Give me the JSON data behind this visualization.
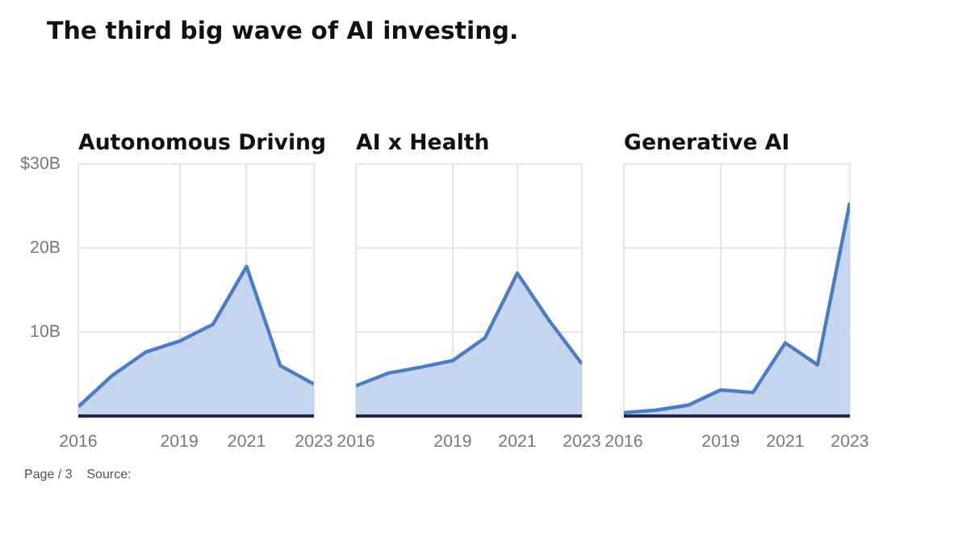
{
  "chart_data": [
    {
      "type": "other",
      "title": "The third big wave of AI investing.",
      "annotations": [
        "Page / 3",
        "Source:"
      ]
    },
    {
      "type": "area",
      "title": "Autonomous Driving",
      "x": [
        2016,
        2017,
        2018,
        2019,
        2020,
        2021,
        2022,
        2023
      ],
      "series": [
        {
          "color": "#4a7cc9",
          "values": [
            1.1,
            4.8,
            7.6,
            8.9,
            10.9,
            17.8,
            6.0,
            3.8
          ]
        }
      ],
      "xlim": [
        2016,
        2023
      ],
      "xticks": [
        2016,
        2019,
        2021,
        2023
      ],
      "ylim": [
        0,
        30
      ],
      "yticks": [
        {
          "value": 10,
          "label": "10B"
        },
        {
          "value": 20,
          "label": "20B"
        },
        {
          "value": 30,
          "label": "$30B"
        }
      ],
      "grid": true
    },
    {
      "type": "area",
      "title": "AI x Health",
      "x": [
        2016,
        2017,
        2018,
        2019,
        2020,
        2021,
        2022,
        2023
      ],
      "series": [
        {
          "color": "#4a7cc9",
          "values": [
            3.6,
            5.1,
            5.8,
            6.6,
            9.3,
            17.0,
            11.3,
            6.2
          ]
        }
      ],
      "xlim": [
        2016,
        2023
      ],
      "xticks": [
        2016,
        2019,
        2021,
        2023
      ],
      "ylim": [
        0,
        30
      ],
      "yticks": [
        {
          "value": 10,
          "label": null
        },
        {
          "value": 20,
          "label": null
        },
        {
          "value": 30,
          "label": null
        }
      ],
      "grid": true,
      "tick_labels": "x"
    },
    {
      "type": "area",
      "title": "Generative AI",
      "x": [
        2016,
        2017,
        2018,
        2019,
        2020,
        2021,
        2022,
        2023
      ],
      "series": [
        {
          "color": "#4a7cc9",
          "values": [
            0.4,
            0.7,
            1.3,
            3.1,
            2.8,
            8.7,
            6.1,
            25.4
          ]
        }
      ],
      "xlim": [
        2016,
        2023
      ],
      "xticks": [
        2016,
        2019,
        2021,
        2023
      ],
      "ylim": [
        0,
        30
      ],
      "yticks": [
        {
          "value": 10,
          "label": null
        },
        {
          "value": 20,
          "label": null
        },
        {
          "value": 30,
          "label": null
        }
      ],
      "grid": true,
      "tick_labels": "x"
    }
  ]
}
